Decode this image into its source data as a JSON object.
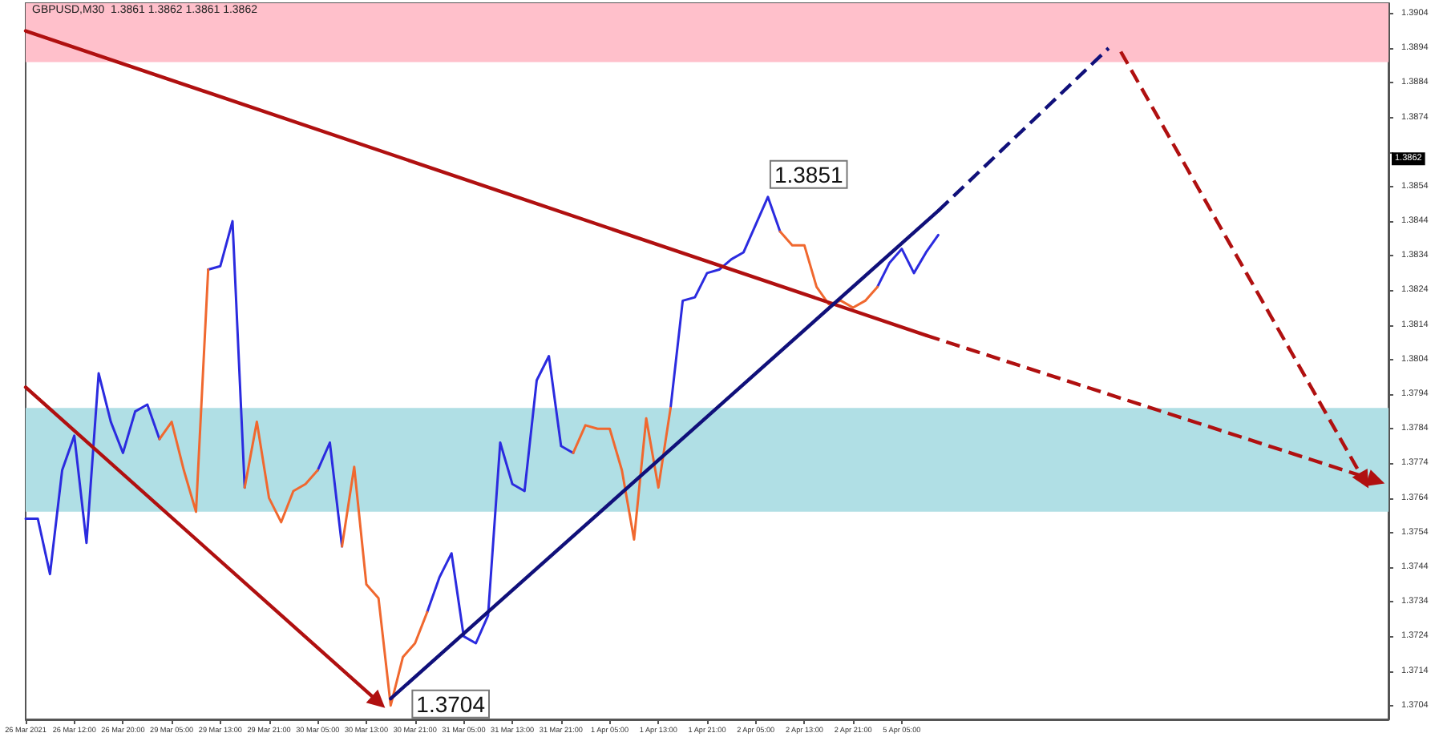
{
  "chart_data": {
    "type": "line",
    "title": "GBPUSD,M30  1.3861 1.3862 1.3861 1.3862",
    "categories": [
      "26 Mar 2021",
      null,
      null,
      null,
      "26 Mar 12:00",
      null,
      null,
      null,
      "26 Mar 20:00",
      null,
      null,
      null,
      "29 Mar 05:00",
      null,
      null,
      null,
      "29 Mar 13:00",
      null,
      null,
      null,
      "29 Mar 21:00",
      null,
      null,
      null,
      "30 Mar 05:00",
      null,
      null,
      null,
      "30 Mar 13:00",
      null,
      null,
      null,
      "30 Mar 21:00",
      null,
      null,
      null,
      "31 Mar 05:00",
      null,
      null,
      null,
      "31 Mar 13:00",
      null,
      null,
      null,
      "31 Mar 21:00",
      null,
      null,
      null,
      "1 Apr 05:00",
      null,
      null,
      null,
      "1 Apr 13:00",
      null,
      null,
      null,
      "1 Apr 21:00",
      null,
      null,
      null,
      "2 Apr 05:00",
      null,
      null,
      null,
      "2 Apr 13:00",
      null,
      null,
      null,
      "2 Apr 21:00",
      null,
      null,
      null,
      "5 Apr 05:00",
      null,
      null,
      null,
      null,
      null,
      null,
      null,
      null,
      null,
      null,
      null,
      null,
      null,
      null,
      null,
      null,
      null,
      null,
      null,
      null,
      null,
      null,
      null,
      null,
      null,
      null,
      null,
      null,
      null,
      null,
      null,
      null,
      null,
      null,
      null,
      null,
      null,
      null,
      null,
      null
    ],
    "ylim": [
      1.37,
      1.3907
    ],
    "yticks": [
      1.3704,
      1.3714,
      1.3724,
      1.3734,
      1.3744,
      1.3754,
      1.3764,
      1.3774,
      1.3784,
      1.3794,
      1.3804,
      1.3814,
      1.3824,
      1.3834,
      1.3844,
      1.3854,
      {
        "value": 1.3864,
        "label": null
      },
      1.3874,
      1.3884,
      1.3894,
      1.3904
    ],
    "grid": false,
    "marker": "none",
    "bands": [
      {
        "axis": "y",
        "from": 1.389,
        "to": 1.3907,
        "color": "#ffc0cb"
      },
      {
        "axis": "y",
        "from": 1.376,
        "to": 1.379,
        "color": "#b0dfe5"
      }
    ],
    "annotations": [
      "1.3851",
      "1.3704",
      {
        "text": "1.3862",
        "y": 1.3862
      }
    ],
    "series": [
      {
        "color": "#2b2bdf",
        "values": [
          1.3758,
          1.3758,
          1.3742,
          1.3772,
          1.3782,
          1.3751,
          1.38,
          1.3786,
          1.3777,
          1.3789,
          1.3791,
          1.3781,
          null,
          null,
          null,
          1.383,
          1.3831,
          1.3844,
          1.3767,
          null,
          null,
          null,
          null,
          null,
          1.3772,
          1.378,
          1.375,
          null,
          null,
          null,
          null,
          null,
          null,
          1.3731,
          1.3741,
          1.3748,
          1.3724,
          1.3722,
          1.373,
          1.378,
          1.3768,
          1.3766,
          1.3798,
          1.3805,
          1.3779,
          1.3777,
          null,
          null,
          null,
          null,
          null,
          null,
          null,
          1.379,
          1.3821,
          1.3822,
          1.3829,
          1.383,
          1.3833,
          1.3835,
          1.3843,
          1.3851,
          1.3841,
          null,
          null,
          null,
          null,
          null,
          null,
          null,
          1.3825,
          1.3832,
          1.3836,
          1.3829,
          1.3835,
          1.384,
          null,
          null,
          null,
          null,
          null,
          null,
          null,
          null,
          null,
          null,
          null,
          null,
          null,
          null,
          null,
          null,
          null,
          null,
          null,
          null,
          null,
          null,
          null,
          null,
          null,
          null,
          null,
          null,
          null,
          null,
          null,
          null,
          null,
          null,
          null,
          null,
          null
        ]
      },
      {
        "color": "#f0682f",
        "values": [
          null,
          null,
          null,
          null,
          null,
          null,
          null,
          null,
          null,
          null,
          null,
          1.3781,
          1.3786,
          1.3772,
          1.376,
          1.383,
          null,
          null,
          1.3767,
          1.3786,
          1.3764,
          1.3757,
          1.3766,
          1.3768,
          1.3772,
          null,
          1.375,
          1.3773,
          1.3739,
          1.3735,
          1.3704,
          1.3718,
          1.3722,
          1.3731,
          null,
          null,
          null,
          null,
          null,
          null,
          null,
          null,
          null,
          null,
          null,
          1.3777,
          1.3785,
          1.3784,
          1.3784,
          1.3772,
          1.3752,
          1.3787,
          1.3767,
          1.379,
          null,
          null,
          null,
          null,
          null,
          null,
          null,
          null,
          1.3841,
          1.3837,
          1.3837,
          1.3825,
          1.382,
          1.3821,
          1.3819,
          1.3821,
          1.3825,
          null,
          null,
          null,
          null,
          null,
          null,
          null,
          null,
          null,
          null,
          null,
          null,
          null,
          null,
          null,
          null,
          null,
          null,
          null,
          null,
          null,
          null,
          null,
          null,
          null,
          null,
          null,
          null,
          null,
          null,
          null,
          null,
          null,
          null,
          null,
          null,
          null,
          null,
          null,
          null,
          null,
          null
        ]
      },
      {
        "color": "#b01010",
        "line_style": "solid",
        "values": [
          1.3899,
          null,
          null,
          null,
          null,
          null,
          null,
          null,
          null,
          null,
          null,
          null,
          null,
          null,
          null,
          null,
          null,
          null,
          null,
          null,
          null,
          null,
          null,
          null,
          null,
          null,
          null,
          null,
          null,
          null,
          null,
          null,
          null,
          null,
          null,
          null,
          null,
          null,
          null,
          null,
          null,
          null,
          null,
          null,
          null,
          null,
          null,
          null,
          null,
          null,
          null,
          null,
          null,
          null,
          null,
          null,
          null,
          null,
          null,
          null,
          null,
          null,
          null,
          null,
          null,
          null,
          null,
          null,
          null,
          null,
          null,
          null,
          null,
          null,
          1.3811,
          null,
          null,
          null,
          null,
          null,
          null,
          null,
          null,
          null,
          null,
          null,
          null,
          null,
          null,
          null,
          null,
          null,
          null,
          null,
          null,
          null,
          null,
          null,
          null,
          null,
          null,
          null,
          null,
          null,
          null,
          null,
          null,
          null,
          null,
          null,
          null,
          null,
          null
        ]
      },
      {
        "color": "#b01010",
        "line_style": "dashed",
        "marker": "triangle",
        "values": [
          null,
          null,
          null,
          null,
          null,
          null,
          null,
          null,
          null,
          null,
          null,
          null,
          null,
          null,
          null,
          null,
          null,
          null,
          null,
          null,
          null,
          null,
          null,
          null,
          null,
          null,
          null,
          null,
          null,
          null,
          null,
          null,
          null,
          null,
          null,
          null,
          null,
          null,
          null,
          null,
          null,
          null,
          null,
          null,
          null,
          null,
          null,
          null,
          null,
          null,
          null,
          null,
          null,
          null,
          null,
          null,
          null,
          null,
          null,
          null,
          null,
          null,
          null,
          null,
          null,
          null,
          null,
          null,
          null,
          null,
          null,
          null,
          null,
          null,
          1.3811,
          null,
          null,
          null,
          null,
          null,
          null,
          null,
          null,
          null,
          null,
          null,
          null,
          null,
          null,
          null,
          null,
          null,
          null,
          null,
          null,
          null,
          null,
          null,
          null,
          null,
          null,
          null,
          null,
          null,
          null,
          null,
          null,
          null,
          null,
          null,
          null,
          1.3769,
          null
        ]
      },
      {
        "color": "#10107a",
        "line_style": "solid",
        "values": [
          null,
          null,
          null,
          null,
          null,
          null,
          null,
          null,
          null,
          null,
          null,
          null,
          null,
          null,
          null,
          null,
          null,
          null,
          null,
          null,
          null,
          null,
          null,
          null,
          null,
          null,
          null,
          null,
          null,
          null,
          1.3706,
          null,
          null,
          null,
          null,
          null,
          null,
          null,
          null,
          null,
          null,
          null,
          null,
          null,
          null,
          null,
          null,
          null,
          null,
          null,
          null,
          null,
          null,
          null,
          null,
          null,
          null,
          null,
          null,
          null,
          null,
          null,
          null,
          null,
          null,
          null,
          null,
          null,
          null,
          null,
          null,
          null,
          null,
          null,
          null,
          1.3847,
          null,
          null,
          null,
          null,
          null,
          null,
          null,
          null,
          null,
          null,
          null,
          null,
          null,
          null,
          null,
          null,
          null,
          null,
          null,
          null,
          null,
          null,
          null,
          null,
          null,
          null,
          null,
          null,
          null,
          null,
          null,
          null,
          null,
          null,
          null,
          null,
          null
        ]
      },
      {
        "color": "#10107a",
        "line_style": "dashed",
        "values": [
          null,
          null,
          null,
          null,
          null,
          null,
          null,
          null,
          null,
          null,
          null,
          null,
          null,
          null,
          null,
          null,
          null,
          null,
          null,
          null,
          null,
          null,
          null,
          null,
          null,
          null,
          null,
          null,
          null,
          null,
          null,
          null,
          null,
          null,
          null,
          null,
          null,
          null,
          null,
          null,
          null,
          null,
          null,
          null,
          null,
          null,
          null,
          null,
          null,
          null,
          null,
          null,
          null,
          null,
          null,
          null,
          null,
          null,
          null,
          null,
          null,
          null,
          null,
          null,
          null,
          null,
          null,
          null,
          null,
          null,
          null,
          null,
          null,
          null,
          null,
          1.3847,
          null,
          null,
          null,
          null,
          null,
          null,
          null,
          null,
          null,
          null,
          null,
          null,
          null,
          1.3894,
          null,
          null,
          null,
          null,
          null,
          null,
          null,
          null,
          null,
          null,
          null,
          null,
          null,
          null,
          null,
          null,
          null,
          null,
          null,
          null,
          null,
          null,
          null
        ]
      },
      {
        "color": "#b01010",
        "line_style": "dashed",
        "marker": "triangle",
        "values": [
          null,
          null,
          null,
          null,
          null,
          null,
          null,
          null,
          null,
          null,
          null,
          null,
          null,
          null,
          null,
          null,
          null,
          null,
          null,
          null,
          null,
          null,
          null,
          null,
          null,
          null,
          null,
          null,
          null,
          null,
          null,
          null,
          null,
          null,
          null,
          null,
          null,
          null,
          null,
          null,
          null,
          null,
          null,
          null,
          null,
          null,
          null,
          null,
          null,
          null,
          null,
          null,
          null,
          null,
          null,
          null,
          null,
          null,
          null,
          null,
          null,
          null,
          null,
          null,
          null,
          null,
          null,
          null,
          null,
          null,
          null,
          null,
          null,
          null,
          null,
          null,
          null,
          null,
          null,
          null,
          null,
          null,
          null,
          null,
          null,
          null,
          null,
          null,
          null,
          null,
          1.3893,
          null,
          null,
          null,
          null,
          null,
          null,
          null,
          null,
          null,
          null,
          null,
          null,
          null,
          null,
          null,
          null,
          null,
          null,
          null,
          1.3769,
          null,
          null
        ]
      },
      {
        "color": "#b01010",
        "line_style": "solid",
        "marker": "triangle",
        "values": [
          1.3796,
          null,
          null,
          null,
          null,
          null,
          null,
          null,
          null,
          null,
          null,
          null,
          null,
          null,
          null,
          null,
          null,
          null,
          null,
          null,
          null,
          null,
          null,
          null,
          null,
          null,
          null,
          null,
          null,
          1.3705,
          null,
          null,
          null,
          null,
          null,
          null,
          null,
          null,
          null,
          null,
          null,
          null,
          null,
          null,
          null,
          null,
          null,
          null,
          null,
          null,
          null,
          null,
          null,
          null,
          null,
          null,
          null,
          null,
          null,
          null,
          null,
          null,
          null,
          null,
          null,
          null,
          null,
          null,
          null,
          null,
          null,
          null,
          null,
          null,
          null,
          null,
          null,
          null,
          null,
          null,
          null,
          null,
          null,
          null,
          null,
          null,
          null,
          null,
          null,
          null,
          null,
          null,
          null,
          null,
          null,
          null,
          null,
          null,
          null,
          null,
          null,
          null,
          null,
          null,
          null,
          null,
          null,
          null,
          null,
          null,
          null,
          null,
          null
        ]
      }
    ]
  }
}
